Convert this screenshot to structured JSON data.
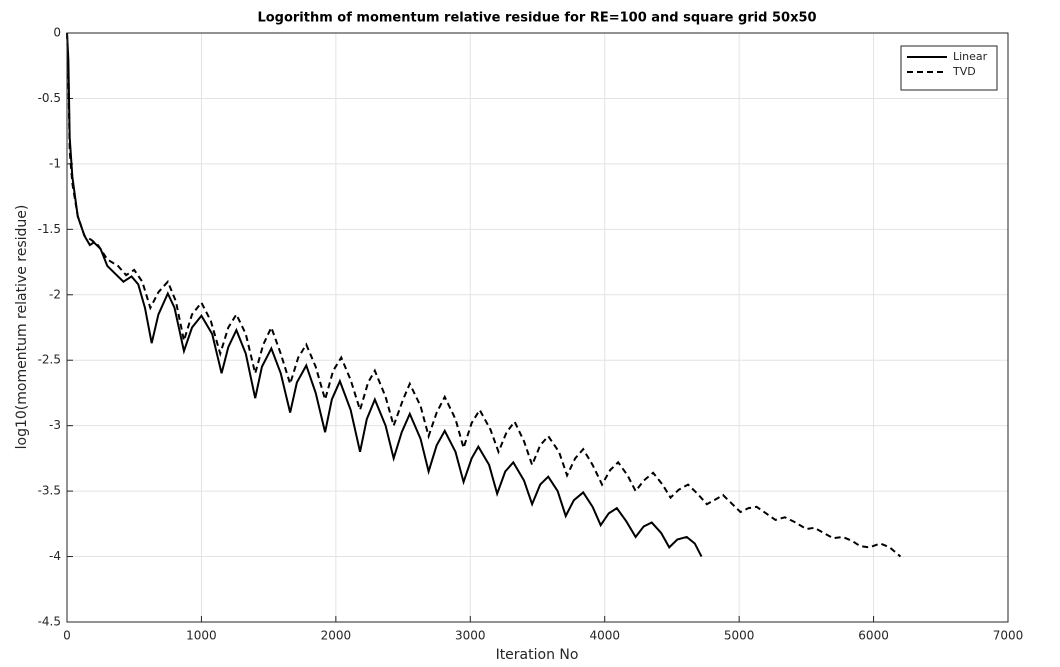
{
  "chart_data": {
    "type": "line",
    "title": "Logorithm of momentum relative residue for RE=100 and square grid 50x50",
    "x_label": "Iteration No",
    "y_label": "log10(momentum relative residue)",
    "xlim": [
      0,
      7000
    ],
    "xticks": [
      0,
      1000,
      2000,
      3000,
      4000,
      5000,
      6000,
      7000
    ],
    "ylim": [
      -4.5,
      0
    ],
    "yticks": [
      -4.5,
      -4,
      -3.5,
      -3,
      -2.5,
      -2,
      -1.5,
      -1,
      -0.5,
      0
    ],
    "grid": true,
    "legend": "top-right",
    "series": [
      {
        "name": "Linear",
        "color": "#000000",
        "dash": "solid",
        "x": [
          0,
          10,
          20,
          40,
          80,
          130,
          170,
          200,
          250,
          300,
          350,
          420,
          480,
          530,
          580,
          630,
          680,
          750,
          800,
          870,
          930,
          1000,
          1080,
          1150,
          1200,
          1260,
          1330,
          1400,
          1450,
          1520,
          1590,
          1660,
          1710,
          1780,
          1850,
          1920,
          1970,
          2030,
          2110,
          2180,
          2230,
          2290,
          2370,
          2430,
          2490,
          2550,
          2630,
          2690,
          2750,
          2810,
          2890,
          2950,
          3010,
          3060,
          3140,
          3200,
          3260,
          3320,
          3400,
          3460,
          3520,
          3580,
          3650,
          3710,
          3770,
          3840,
          3910,
          3970,
          4030,
          4090,
          4160,
          4230,
          4290,
          4350,
          4420,
          4480,
          4540,
          4610,
          4670,
          4720
        ],
        "values": [
          0,
          -0.2,
          -0.8,
          -1.1,
          -1.4,
          -1.55,
          -1.62,
          -1.6,
          -1.65,
          -1.78,
          -1.83,
          -1.9,
          -1.86,
          -1.92,
          -2.1,
          -2.37,
          -2.15,
          -1.99,
          -2.1,
          -2.43,
          -2.25,
          -2.16,
          -2.3,
          -2.6,
          -2.4,
          -2.27,
          -2.45,
          -2.79,
          -2.55,
          -2.41,
          -2.6,
          -2.9,
          -2.67,
          -2.54,
          -2.75,
          -3.05,
          -2.8,
          -2.66,
          -2.88,
          -3.2,
          -2.95,
          -2.8,
          -3.0,
          -3.25,
          -3.05,
          -2.91,
          -3.1,
          -3.35,
          -3.15,
          -3.04,
          -3.2,
          -3.43,
          -3.25,
          -3.16,
          -3.3,
          -3.52,
          -3.35,
          -3.28,
          -3.42,
          -3.6,
          -3.45,
          -3.39,
          -3.5,
          -3.69,
          -3.57,
          -3.51,
          -3.62,
          -3.76,
          -3.67,
          -3.63,
          -3.73,
          -3.85,
          -3.77,
          -3.74,
          -3.82,
          -3.93,
          -3.87,
          -3.85,
          -3.9,
          -4.0
        ]
      },
      {
        "name": "TVD",
        "color": "#000000",
        "dash": "dashed",
        "x": [
          0,
          10,
          20,
          40,
          80,
          130,
          180,
          230,
          300,
          380,
          440,
          500,
          560,
          620,
          680,
          750,
          810,
          870,
          930,
          1000,
          1070,
          1140,
          1200,
          1260,
          1330,
          1400,
          1460,
          1520,
          1590,
          1660,
          1720,
          1780,
          1850,
          1920,
          1980,
          2040,
          2110,
          2180,
          2240,
          2290,
          2370,
          2430,
          2500,
          2550,
          2630,
          2690,
          2750,
          2810,
          2890,
          2950,
          3010,
          3070,
          3150,
          3210,
          3270,
          3330,
          3400,
          3460,
          3520,
          3580,
          3660,
          3720,
          3780,
          3840,
          3910,
          3980,
          4040,
          4100,
          4170,
          4230,
          4290,
          4360,
          4430,
          4490,
          4550,
          4620,
          4690,
          4760,
          4830,
          4880,
          4950,
          5010,
          5070,
          5130,
          5200,
          5270,
          5340,
          5420,
          5500,
          5560,
          5630,
          5700,
          5770,
          5840,
          5900,
          5970,
          6050,
          6120,
          6200
        ],
        "values": [
          0,
          -0.3,
          -0.9,
          -1.15,
          -1.4,
          -1.55,
          -1.58,
          -1.62,
          -1.73,
          -1.78,
          -1.85,
          -1.81,
          -1.9,
          -2.1,
          -1.98,
          -1.9,
          -2.05,
          -2.35,
          -2.15,
          -2.06,
          -2.2,
          -2.45,
          -2.25,
          -2.15,
          -2.3,
          -2.6,
          -2.38,
          -2.25,
          -2.45,
          -2.68,
          -2.48,
          -2.38,
          -2.55,
          -2.8,
          -2.58,
          -2.48,
          -2.65,
          -2.88,
          -2.67,
          -2.58,
          -2.78,
          -3.0,
          -2.8,
          -2.68,
          -2.85,
          -3.08,
          -2.9,
          -2.78,
          -2.95,
          -3.17,
          -2.98,
          -2.88,
          -3.03,
          -3.2,
          -3.05,
          -2.97,
          -3.12,
          -3.3,
          -3.15,
          -3.08,
          -3.2,
          -3.38,
          -3.25,
          -3.18,
          -3.3,
          -3.45,
          -3.34,
          -3.28,
          -3.38,
          -3.5,
          -3.42,
          -3.36,
          -3.45,
          -3.55,
          -3.49,
          -3.45,
          -3.52,
          -3.6,
          -3.56,
          -3.53,
          -3.6,
          -3.66,
          -3.63,
          -3.62,
          -3.67,
          -3.72,
          -3.7,
          -3.74,
          -3.79,
          -3.78,
          -3.82,
          -3.86,
          -3.85,
          -3.88,
          -3.92,
          -3.93,
          -3.9,
          -3.93,
          -4.0
        ]
      }
    ]
  }
}
